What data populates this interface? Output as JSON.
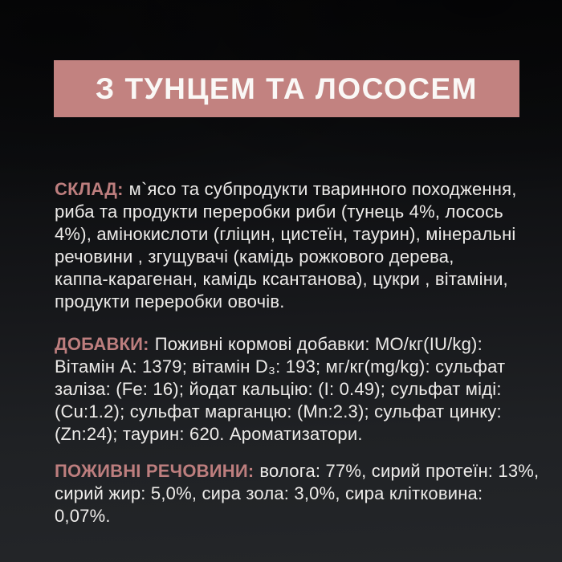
{
  "banner": {
    "title": "З ТУНЦЕМ ТА ЛОСОСЕМ"
  },
  "sections": [
    {
      "name": "composition",
      "heading": "СКЛАД:",
      "lines": [
        "м`ясо та субпродукти тваринного походження,",
        "риба та продукти переробки риби (тунець 4%, лосось",
        "4%), амінокислоти (гліцин, цистеїн, таурин), мінеральні",
        "речовини , згущувачі (камідь рожкового дерева,",
        "каппа-карагенан, камідь ксантанова), цукри , вітаміни,",
        "продукти переробки овочів."
      ]
    },
    {
      "name": "additives",
      "heading": "ДОБАВКИ:",
      "lines": [
        "Поживні кормові добавки: МО/кг(IU/kg):",
        "Вітамін А: 1379; вітамін D₃: 193; мг/кг(mg/kg): сульфат",
        "заліза: (Fe: 16); йодат кальцію: (I: 0.49); сульфат міді:",
        "(Cu:1.2); сульфат марганцю: (Mn:2.3); сульфат цинку:",
        "(Zn:24); таурин: 620. Ароматизатори."
      ]
    },
    {
      "name": "nutrients",
      "heading": "ПОЖИВНІ РЕЧОВИНИ:",
      "lines": [
        "волога: 77%, сирий протеїн: 13%,",
        "сирий жир: 5,0%, сира зола: 3,0%, сира клітковина:",
        "0,07%."
      ]
    }
  ],
  "colors": {
    "banner_background": "#c28280",
    "banner_text": "#faf8f6",
    "section_heading": "#bd7e7e",
    "body_text": "#edebe9",
    "background_top": "#08080a",
    "background_bottom": "#242629"
  }
}
